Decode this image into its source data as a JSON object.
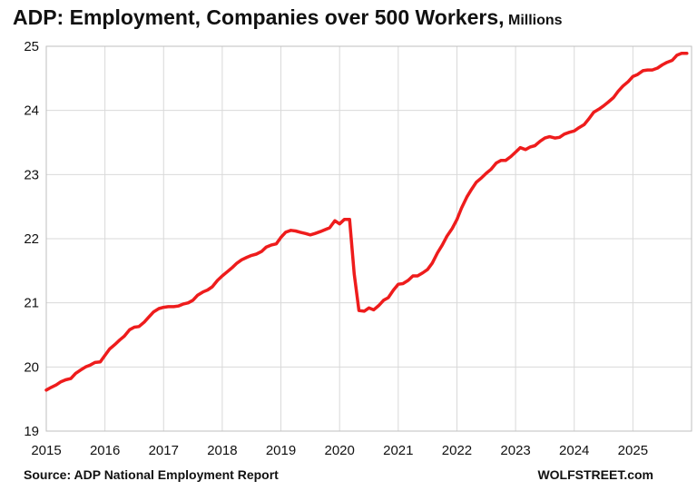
{
  "chart_data": {
    "type": "line",
    "title": "ADP: Employment, Companies over 500 Workers,",
    "units": "Millions",
    "xlabel": "",
    "ylabel": "",
    "xlim": [
      2015,
      2026
    ],
    "ylim": [
      19,
      25
    ],
    "x_ticks": [
      "2015",
      "2016",
      "2017",
      "2018",
      "2019",
      "2020",
      "2021",
      "2022",
      "2023",
      "2024",
      "2025"
    ],
    "y_ticks": [
      "19",
      "20",
      "21",
      "22",
      "23",
      "24",
      "25"
    ],
    "grid": true,
    "series_color": "#ee1c1c",
    "series": [
      {
        "x": [
          2015.0,
          2015.08,
          2015.17,
          2015.25,
          2015.33,
          2015.42,
          2015.5,
          2015.58,
          2015.67,
          2015.75,
          2015.83,
          2015.92,
          2016.0,
          2016.08,
          2016.17,
          2016.25,
          2016.33,
          2016.42,
          2016.5,
          2016.58,
          2016.67,
          2016.75,
          2016.83,
          2016.92,
          2017.0,
          2017.08,
          2017.17,
          2017.25,
          2017.33,
          2017.42,
          2017.5,
          2017.58,
          2017.67,
          2017.75,
          2017.83,
          2017.92,
          2018.0,
          2018.08,
          2018.17,
          2018.25,
          2018.33,
          2018.42,
          2018.5,
          2018.58,
          2018.67,
          2018.75,
          2018.83,
          2018.92,
          2019.0,
          2019.08,
          2019.17,
          2019.25,
          2019.33,
          2019.42,
          2019.5,
          2019.58,
          2019.67,
          2019.75,
          2019.83,
          2019.92,
          2020.0,
          2020.08,
          2020.17,
          2020.25,
          2020.33,
          2020.42,
          2020.5,
          2020.58,
          2020.67,
          2020.75,
          2020.83,
          2020.92,
          2021.0,
          2021.08,
          2021.17,
          2021.25,
          2021.33,
          2021.42,
          2021.5,
          2021.58,
          2021.67,
          2021.75,
          2021.83,
          2021.92,
          2022.0,
          2022.08,
          2022.17,
          2022.25,
          2022.33,
          2022.42,
          2022.5,
          2022.58,
          2022.67,
          2022.75,
          2022.83,
          2022.92,
          2023.0,
          2023.08,
          2023.17,
          2023.25,
          2023.33,
          2023.42,
          2023.5,
          2023.58,
          2023.67,
          2023.75,
          2023.83,
          2023.92,
          2024.0,
          2024.08,
          2024.17,
          2024.25,
          2024.33,
          2024.42,
          2024.5,
          2024.58,
          2024.67,
          2024.75,
          2024.83,
          2024.92,
          2025.0,
          2025.08,
          2025.17,
          2025.25,
          2025.33,
          2025.42,
          2025.5,
          2025.58,
          2025.67,
          2025.75,
          2025.83,
          2025.92
        ],
        "values": [
          19.64,
          19.68,
          19.72,
          19.77,
          19.8,
          19.82,
          19.9,
          19.95,
          20.0,
          20.03,
          20.07,
          20.08,
          20.18,
          20.28,
          20.35,
          20.42,
          20.48,
          20.58,
          20.62,
          20.63,
          20.7,
          20.78,
          20.86,
          20.91,
          20.93,
          20.94,
          20.94,
          20.95,
          20.98,
          21.0,
          21.04,
          21.12,
          21.17,
          21.2,
          21.25,
          21.35,
          21.42,
          21.48,
          21.55,
          21.62,
          21.67,
          21.71,
          21.74,
          21.76,
          21.8,
          21.87,
          21.9,
          21.92,
          22.02,
          22.1,
          22.13,
          22.12,
          22.1,
          22.08,
          22.06,
          22.08,
          22.11,
          22.14,
          22.17,
          22.28,
          22.23,
          22.3,
          22.3,
          21.45,
          20.88,
          20.87,
          20.92,
          20.89,
          20.96,
          21.04,
          21.08,
          21.2,
          21.29,
          21.3,
          21.35,
          21.42,
          21.42,
          21.47,
          21.52,
          21.62,
          21.78,
          21.9,
          22.04,
          22.16,
          22.3,
          22.48,
          22.65,
          22.77,
          22.88,
          22.95,
          23.02,
          23.08,
          23.18,
          23.22,
          23.22,
          23.28,
          23.35,
          23.42,
          23.39,
          23.43,
          23.45,
          23.52,
          23.57,
          23.59,
          23.57,
          23.58,
          23.63,
          23.66,
          23.68,
          23.73,
          23.78,
          23.87,
          23.97,
          24.02,
          24.07,
          24.13,
          24.2,
          24.3,
          24.38,
          24.45,
          24.53,
          24.56,
          24.62,
          24.63,
          24.63,
          24.66,
          24.71,
          24.75,
          24.78,
          24.86,
          24.89,
          24.89
        ]
      }
    ]
  },
  "footer": {
    "source": "Source: ADP National Employment Report",
    "brand": "WOLFSTREET.com"
  }
}
